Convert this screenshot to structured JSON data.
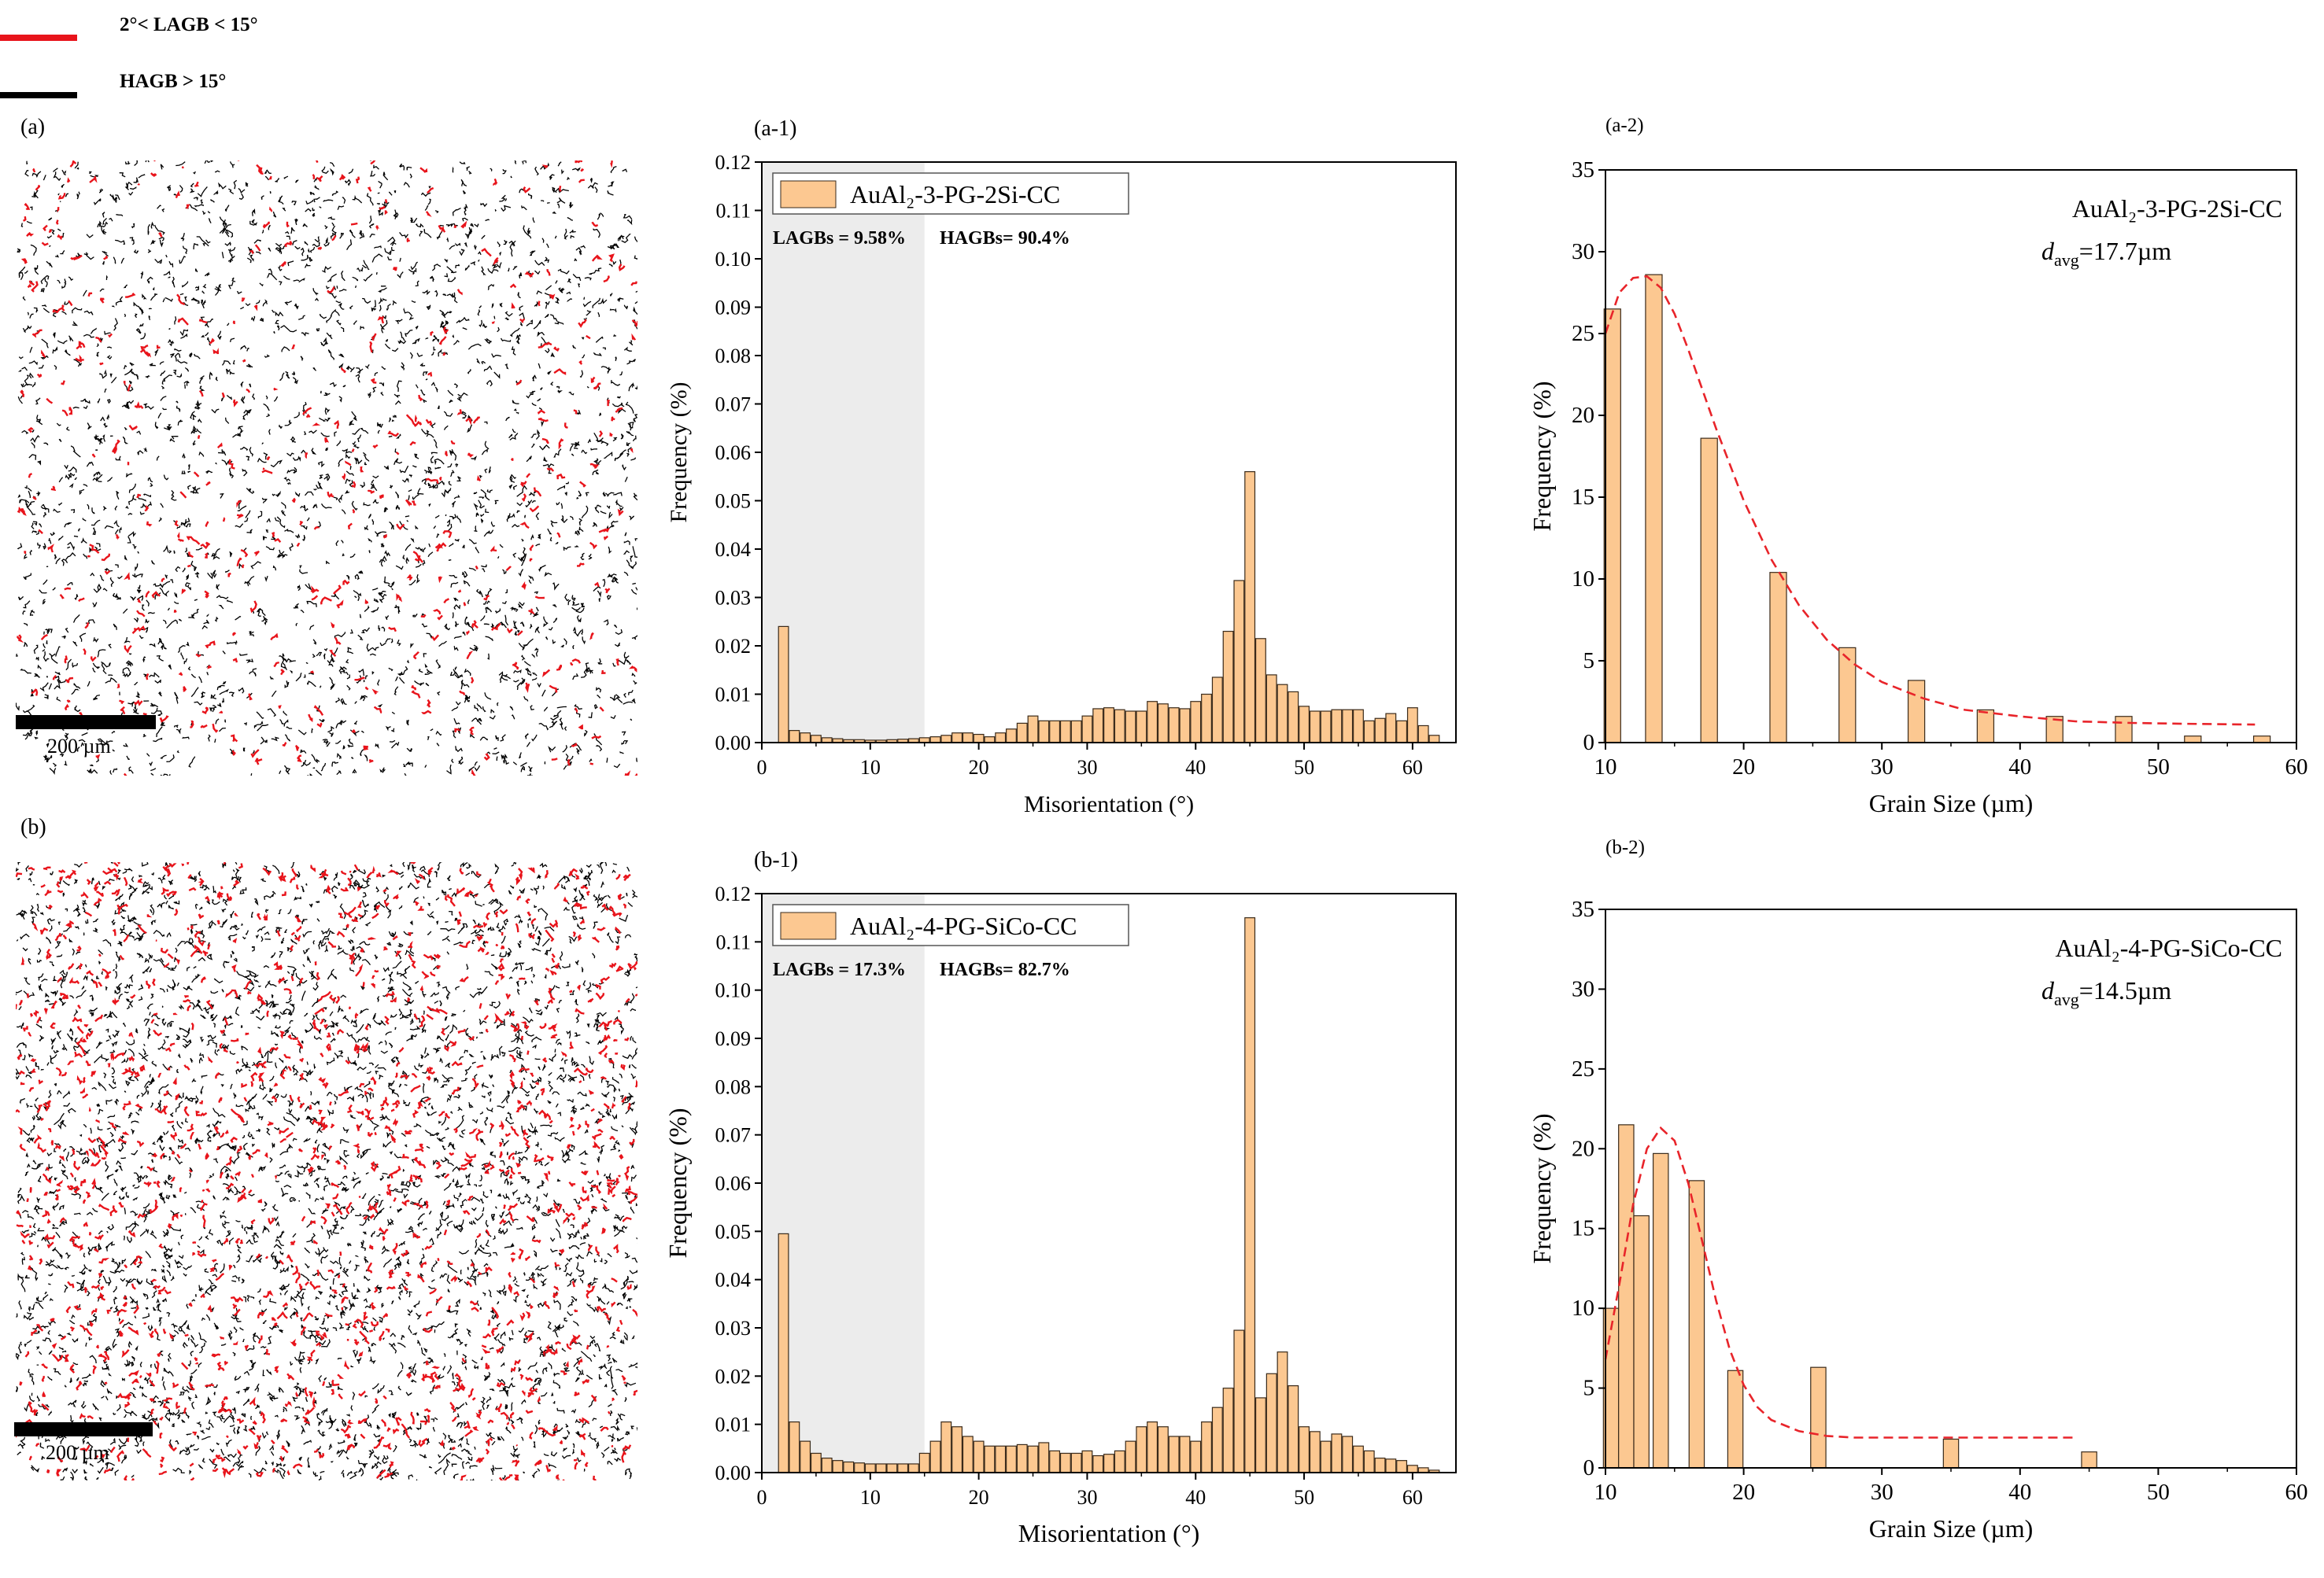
{
  "legend": {
    "lagb_label": "2°< LAGB < 15°",
    "hagb_label": "HAGB > 15°",
    "lagb_color": "#e8141b",
    "hagb_color": "#000000"
  },
  "panels": {
    "a": {
      "label": "(a)",
      "scale_text": "200 µm"
    },
    "b": {
      "label": "(b)",
      "scale_text": "200 µm"
    },
    "a1": {
      "label": "(a-1)"
    },
    "b1": {
      "label": "(b-1)"
    },
    "a2": {
      "label": "(a-2)"
    },
    "b2": {
      "label": "(b-2)"
    }
  },
  "colors": {
    "bar_fill": "#fcc891",
    "bar_stroke": "#3a2a1a",
    "fit_line": "#e8242a",
    "shade": "#e6e6e6"
  },
  "chart_data": [
    {
      "id": "a1",
      "type": "bar",
      "title": "",
      "legend_entry": "AuAl₂-3-PG-2Si-CC",
      "annotation_lagb": "LAGBs = 9.58%",
      "annotation_hagb": "HAGBs= 90.4%",
      "xlabel": "Misorientation (°)",
      "ylabel": "Frequency (%)",
      "xlim": [
        0,
        64
      ],
      "ylim": [
        0,
        0.12
      ],
      "xticks": [
        0,
        10,
        20,
        30,
        40,
        50,
        60
      ],
      "yticks": [
        0.0,
        0.01,
        0.02,
        0.03,
        0.04,
        0.05,
        0.06,
        0.07,
        0.08,
        0.09,
        0.1,
        0.11,
        0.12
      ],
      "ytick_labels": [
        "0.00",
        "0.01",
        "0.02",
        "0.03",
        "0.04",
        "0.05",
        "0.06",
        "0.07",
        "0.08",
        "0.09",
        "0.10",
        "0.11",
        "0.12"
      ],
      "shaded_range": [
        0,
        15
      ],
      "bin_width": 1,
      "x": [
        2,
        3,
        4,
        5,
        6,
        7,
        8,
        9,
        10,
        11,
        12,
        13,
        14,
        15,
        16,
        17,
        18,
        19,
        20,
        21,
        22,
        23,
        24,
        25,
        26,
        27,
        28,
        29,
        30,
        31,
        32,
        33,
        34,
        35,
        36,
        37,
        38,
        39,
        40,
        41,
        42,
        43,
        44,
        45,
        46,
        47,
        48,
        49,
        50,
        51,
        52,
        53,
        54,
        55,
        56,
        57,
        58,
        59,
        60,
        61,
        62
      ],
      "values": [
        0.024,
        0.0025,
        0.002,
        0.0015,
        0.001,
        0.0008,
        0.0006,
        0.0006,
        0.0005,
        0.0005,
        0.0006,
        0.0007,
        0.0008,
        0.001,
        0.0012,
        0.0015,
        0.002,
        0.002,
        0.0017,
        0.0012,
        0.002,
        0.0028,
        0.004,
        0.0055,
        0.0045,
        0.0045,
        0.0045,
        0.0045,
        0.0055,
        0.007,
        0.0072,
        0.0068,
        0.0065,
        0.0065,
        0.0085,
        0.008,
        0.0072,
        0.007,
        0.0085,
        0.01,
        0.0135,
        0.023,
        0.0335,
        0.056,
        0.0215,
        0.014,
        0.012,
        0.0105,
        0.0075,
        0.0065,
        0.0065,
        0.0068,
        0.0068,
        0.0068,
        0.0045,
        0.005,
        0.006,
        0.0045,
        0.0072,
        0.0035,
        0.0015
      ]
    },
    {
      "id": "a2",
      "type": "bar",
      "title": "",
      "annotation_sample": "AuAl₂-3-PG-2Si-CC",
      "annotation_d_prefix": "d",
      "annotation_d_sub": "avg",
      "annotation_d_value": "=17.7µm",
      "xlabel": "Grain Size (µm)",
      "ylabel": "Frequency (%)",
      "xlim": [
        10,
        60
      ],
      "ylim": [
        0,
        35
      ],
      "xticks": [
        10,
        20,
        30,
        40,
        50,
        60
      ],
      "yticks": [
        0,
        5,
        10,
        15,
        20,
        25,
        30,
        35
      ],
      "bin_width": 1.2,
      "x": [
        10.5,
        13.5,
        17.5,
        22.5,
        27.5,
        32.5,
        37.5,
        42.5,
        47.5,
        52.5,
        57.5
      ],
      "values": [
        26.5,
        28.6,
        18.6,
        10.4,
        5.8,
        3.8,
        2.0,
        1.6,
        1.6,
        0.4,
        0.4
      ],
      "fit": {
        "x": [
          10,
          11,
          12,
          13,
          14,
          15,
          16,
          17,
          18,
          20,
          22,
          24,
          26,
          28,
          30,
          33,
          36,
          40,
          44,
          48,
          52,
          57
        ],
        "y": [
          25.0,
          27.5,
          28.4,
          28.5,
          27.8,
          26.2,
          24.0,
          21.6,
          19.2,
          14.8,
          11.2,
          8.4,
          6.3,
          4.8,
          3.7,
          2.7,
          2.0,
          1.6,
          1.3,
          1.2,
          1.15,
          1.1
        ]
      }
    },
    {
      "id": "b1",
      "type": "bar",
      "title": "",
      "legend_entry": "AuAl₂-4-PG-SiCo-CC",
      "annotation_lagb": "LAGBs = 17.3%",
      "annotation_hagb": "HAGBs= 82.7%",
      "xlabel": "Misorientation (°)",
      "ylabel": "Frequency (%)",
      "xlim": [
        0,
        64
      ],
      "ylim": [
        0,
        0.12
      ],
      "xticks": [
        0,
        10,
        20,
        30,
        40,
        50,
        60
      ],
      "yticks": [
        0.0,
        0.01,
        0.02,
        0.03,
        0.04,
        0.05,
        0.06,
        0.07,
        0.08,
        0.09,
        0.1,
        0.11,
        0.12
      ],
      "ytick_labels": [
        "0.00",
        "0.01",
        "0.02",
        "0.03",
        "0.04",
        "0.05",
        "0.06",
        "0.07",
        "0.08",
        "0.09",
        "0.10",
        "0.11",
        "0.12"
      ],
      "shaded_range": [
        0,
        15
      ],
      "bin_width": 1,
      "x": [
        2,
        3,
        4,
        5,
        6,
        7,
        8,
        9,
        10,
        11,
        12,
        13,
        14,
        15,
        16,
        17,
        18,
        19,
        20,
        21,
        22,
        23,
        24,
        25,
        26,
        27,
        28,
        29,
        30,
        31,
        32,
        33,
        34,
        35,
        36,
        37,
        38,
        39,
        40,
        41,
        42,
        43,
        44,
        45,
        46,
        47,
        48,
        49,
        50,
        51,
        52,
        53,
        54,
        55,
        56,
        57,
        58,
        59,
        60,
        61,
        62
      ],
      "values": [
        0.0495,
        0.0105,
        0.0065,
        0.004,
        0.003,
        0.0025,
        0.0022,
        0.002,
        0.0018,
        0.0018,
        0.0018,
        0.0018,
        0.0018,
        0.004,
        0.0065,
        0.0105,
        0.0095,
        0.0075,
        0.0065,
        0.0055,
        0.0055,
        0.0055,
        0.0058,
        0.0055,
        0.0062,
        0.0045,
        0.004,
        0.004,
        0.0045,
        0.0035,
        0.0038,
        0.0045,
        0.0065,
        0.0095,
        0.0105,
        0.0095,
        0.0075,
        0.0075,
        0.0065,
        0.0105,
        0.0135,
        0.0175,
        0.0295,
        0.115,
        0.0155,
        0.0205,
        0.025,
        0.018,
        0.0095,
        0.0085,
        0.0065,
        0.008,
        0.0075,
        0.0055,
        0.0045,
        0.003,
        0.0028,
        0.0025,
        0.0015,
        0.001,
        0.0005
      ]
    },
    {
      "id": "b2",
      "type": "bar",
      "title": "",
      "annotation_sample": "AuAl₂-4-PG-SiCo-CC",
      "annotation_d_prefix": "d",
      "annotation_d_sub": "avg",
      "annotation_d_value": "=14.5µm",
      "xlabel": "Grain Size (µm)",
      "ylabel": "Frequency (%)",
      "xlim": [
        10,
        60
      ],
      "ylim": [
        0,
        35
      ],
      "xticks": [
        10,
        20,
        30,
        40,
        50,
        60
      ],
      "yticks": [
        0,
        5,
        10,
        15,
        20,
        25,
        30,
        35
      ],
      "bin_width": 1.1,
      "x": [
        10.4,
        11.5,
        12.6,
        14.0,
        16.6,
        19.4,
        25.4,
        35.0,
        45.0
      ],
      "values": [
        10.0,
        21.5,
        15.8,
        19.7,
        18.0,
        6.1,
        6.3,
        1.8,
        1.0
      ],
      "fit": {
        "x": [
          10,
          11,
          12,
          13,
          14,
          15,
          16,
          17,
          18,
          19,
          20,
          21,
          22,
          24,
          26,
          28,
          32,
          36,
          40,
          44
        ],
        "y": [
          6.8,
          11.5,
          16.5,
          20.0,
          21.3,
          20.5,
          17.8,
          14.2,
          10.5,
          7.4,
          5.2,
          3.8,
          3.0,
          2.3,
          2.0,
          1.9,
          1.9,
          1.9,
          1.9,
          1.9
        ]
      }
    }
  ]
}
